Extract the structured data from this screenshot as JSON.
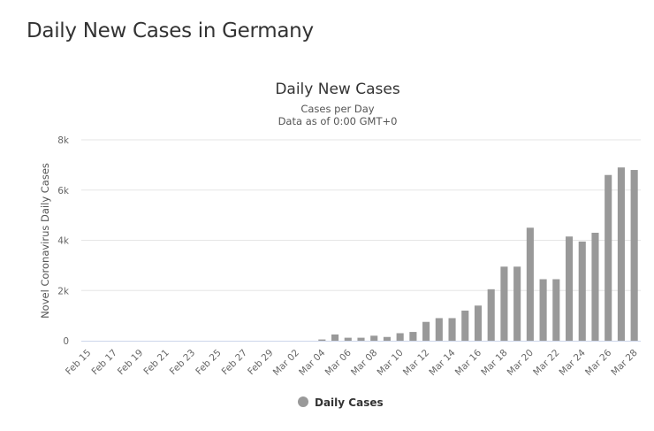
{
  "page": {
    "heading": "Daily New Cases in Germany"
  },
  "chart_data": {
    "type": "bar",
    "title": "Daily New Cases",
    "subtitle_lines": [
      "Cases per Day",
      "Data as of 0:00 GMT+0"
    ],
    "xlabel": "",
    "ylabel": "Novel Coronavirus Daily Cases",
    "ylim": [
      0,
      8000
    ],
    "y_ticks": [
      0,
      2000,
      4000,
      6000,
      8000
    ],
    "y_tick_labels": [
      "0",
      "2k",
      "4k",
      "6k",
      "8k"
    ],
    "categories": [
      "Feb 15",
      "Feb 16",
      "Feb 17",
      "Feb 18",
      "Feb 19",
      "Feb 20",
      "Feb 21",
      "Feb 22",
      "Feb 23",
      "Feb 24",
      "Feb 25",
      "Feb 26",
      "Feb 27",
      "Feb 28",
      "Feb 29",
      "Mar 01",
      "Mar 02",
      "Mar 03",
      "Mar 04",
      "Mar 05",
      "Mar 06",
      "Mar 07",
      "Mar 08",
      "Mar 09",
      "Mar 10",
      "Mar 11",
      "Mar 12",
      "Mar 13",
      "Mar 14",
      "Mar 15",
      "Mar 16",
      "Mar 17",
      "Mar 18",
      "Mar 19",
      "Mar 20",
      "Mar 21",
      "Mar 22",
      "Mar 23",
      "Mar 24",
      "Mar 25",
      "Mar 26",
      "Mar 27",
      "Mar 28"
    ],
    "x_tick_labels": [
      "Feb 15",
      "Feb 17",
      "Feb 19",
      "Feb 21",
      "Feb 23",
      "Feb 25",
      "Feb 27",
      "Feb 29",
      "Mar 02",
      "Mar 04",
      "Mar 06",
      "Mar 08",
      "Mar 10",
      "Mar 12",
      "Mar 14",
      "Mar 16",
      "Mar 18",
      "Mar 20",
      "Mar 22",
      "Mar 24",
      "Mar 26",
      "Mar 28"
    ],
    "series": [
      {
        "name": "Daily Cases",
        "color": "#999999",
        "values": [
          0,
          0,
          0,
          0,
          0,
          0,
          0,
          0,
          0,
          0,
          0,
          0,
          0,
          0,
          0,
          0,
          0,
          0,
          50,
          250,
          120,
          120,
          200,
          150,
          300,
          350,
          750,
          900,
          900,
          1200,
          1400,
          2050,
          2950,
          2950,
          4500,
          2450,
          2450,
          4150,
          3950,
          4300,
          6600,
          6900,
          6800
        ]
      }
    ],
    "legend": {
      "position": "bottom-center",
      "label": "Daily Cases"
    },
    "grid": true
  }
}
